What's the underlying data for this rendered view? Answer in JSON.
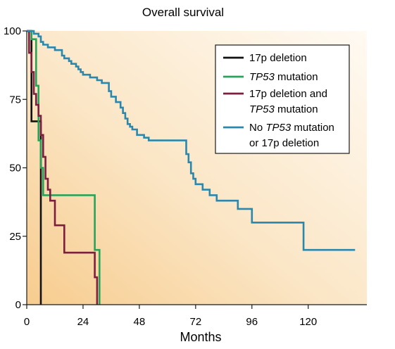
{
  "chart_data": {
    "type": "line",
    "step": true,
    "title": "Overall survival",
    "xlabel": "Months",
    "ylabel": "",
    "xlim": [
      0,
      145
    ],
    "ylim": [
      0,
      100
    ],
    "xticks": [
      0,
      24,
      48,
      72,
      96,
      120
    ],
    "yticks": [
      0,
      25,
      50,
      75,
      100
    ],
    "grid": false,
    "legend_position": "top-right",
    "background": "gradient light peach to cream",
    "series": [
      {
        "name": "17p deletion",
        "color": "#111111",
        "x": [
          0,
          2,
          4,
          6,
          6
        ],
        "y": [
          100,
          67,
          67,
          67,
          0
        ]
      },
      {
        "name": "TP53 mutation",
        "color": "#2aa35a",
        "x": [
          0,
          2,
          4,
          5,
          6,
          7,
          29,
          30,
          31
        ],
        "y": [
          100,
          97,
          80,
          60,
          50,
          40,
          20,
          20,
          0
        ]
      },
      {
        "name": "17p deletion and TP53 mutation",
        "color": "#7d1d3f",
        "x": [
          0,
          1,
          2,
          3,
          4,
          5,
          6,
          7,
          8,
          9,
          10,
          12,
          16,
          29,
          30
        ],
        "y": [
          100,
          92,
          85,
          77,
          73,
          69,
          62,
          54,
          46,
          42,
          38,
          29,
          19,
          10,
          0
        ]
      },
      {
        "name": "No TP53 mutation or 17p deletion",
        "color": "#2a87ad",
        "x": [
          0,
          3,
          5,
          6,
          7,
          9,
          12,
          15,
          16,
          18,
          19,
          21,
          22,
          23,
          24,
          27,
          30,
          32,
          35,
          36,
          38,
          40,
          41,
          42,
          43,
          44,
          45,
          47,
          48,
          50,
          52,
          55,
          56,
          58,
          63,
          68,
          69,
          70,
          71,
          72,
          75,
          78,
          81,
          84,
          90,
          96,
          111,
          118,
          140
        ],
        "y": [
          100,
          99,
          98,
          96,
          95,
          94,
          93,
          91,
          90,
          89,
          88,
          87,
          86,
          85,
          84,
          83,
          82,
          81,
          78,
          76,
          74,
          72,
          70,
          68,
          66,
          65,
          64,
          62,
          62,
          61,
          60,
          60,
          60,
          60,
          60,
          55,
          52,
          48,
          46,
          44,
          42,
          40,
          38,
          38,
          35,
          30,
          30,
          20,
          20
        ]
      }
    ],
    "legend": [
      {
        "parts": [
          {
            "t": "17p deletion"
          }
        ]
      },
      {
        "parts": [
          {
            "t": "TP53",
            "it": true
          },
          {
            "t": " mutation"
          }
        ]
      },
      {
        "parts": [
          {
            "t": "17p deletion and"
          }
        ],
        "parts2": [
          {
            "t": "TP53",
            "it": true
          },
          {
            "t": " mutation"
          }
        ]
      },
      {
        "parts": [
          {
            "t": "No "
          },
          {
            "t": "TP53",
            "it": true
          },
          {
            "t": " mutation"
          }
        ],
        "parts2": [
          {
            "t": "or 17p deletion"
          }
        ]
      }
    ]
  }
}
